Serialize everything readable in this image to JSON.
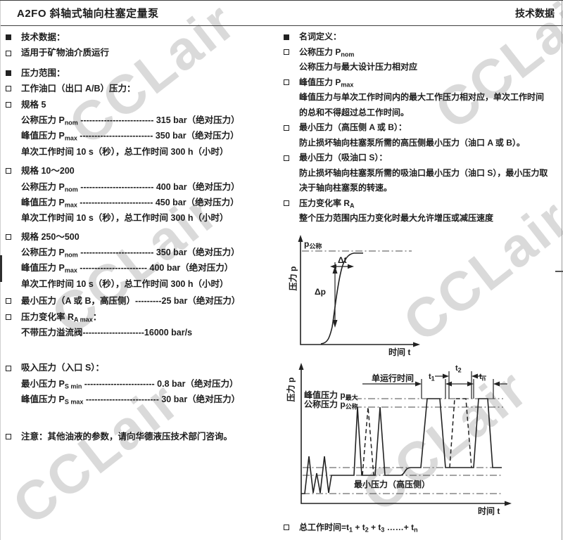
{
  "watermark": {
    "text": "CCLair"
  },
  "header": {
    "title": "A2FO 斜轴式轴向柱塞定量泵",
    "right": "技术数据"
  },
  "left": {
    "items": [
      {
        "b": "f",
        "segs": [
          {
            "t": "技术数据："
          }
        ]
      },
      {
        "b": "h",
        "segs": [
          {
            "t": "适用于矿物油介质运行"
          }
        ]
      },
      {
        "b": "f",
        "gap": "g6",
        "segs": [
          {
            "t": "压力范围："
          }
        ]
      },
      {
        "b": "h",
        "segs": [
          {
            "t": "工作油口（出口 A/B）压力："
          }
        ]
      },
      {
        "b": "h",
        "segs": [
          {
            "t": "规格 5"
          }
        ]
      },
      {
        "b": "n",
        "segs": [
          {
            "t": "公称压力 P"
          },
          {
            "t": "nom",
            "s": true
          },
          {
            "t": "  ------------------------- 315 bar（绝对压力）"
          }
        ]
      },
      {
        "b": "n",
        "segs": [
          {
            "t": "峰值压力 P"
          },
          {
            "t": "max",
            "s": true
          },
          {
            "t": "  ------------------------- 350 bar（绝对压力）"
          }
        ]
      },
      {
        "b": "n",
        "segs": [
          {
            "t": "单次工作时间 10 s（秒），总工作时间 300 h（小时）"
          }
        ]
      },
      {
        "b": "h",
        "gap": "g5",
        "segs": [
          {
            "t": "规格 10～200"
          }
        ]
      },
      {
        "b": "n",
        "segs": [
          {
            "t": "公称压力 P"
          },
          {
            "t": "nom",
            "s": true
          },
          {
            "t": "  ------------------------- 400 bar（绝对压力）"
          }
        ]
      },
      {
        "b": "n",
        "segs": [
          {
            "t": "峰值压力 P"
          },
          {
            "t": "max",
            "s": true
          },
          {
            "t": "  ------------------------- 450 bar（绝对压力）"
          }
        ]
      },
      {
        "b": "n",
        "segs": [
          {
            "t": "单次工作时间 10 s（秒），总工作时间 300 h（小时）"
          }
        ]
      },
      {
        "b": "h",
        "gap": "g4",
        "segs": [
          {
            "t": "规格 250～500"
          }
        ]
      },
      {
        "b": "n",
        "segs": [
          {
            "t": "公称压力 P"
          },
          {
            "t": "nom",
            "s": true
          },
          {
            "t": "  ------------------------- 350 bar（绝对压力）"
          }
        ]
      },
      {
        "b": "n",
        "segs": [
          {
            "t": "峰值压力 P"
          },
          {
            "t": "max",
            "s": true
          },
          {
            "t": "  ----------------------- 400 bar（绝对压力）"
          }
        ]
      },
      {
        "b": "n",
        "segs": [
          {
            "t": "单次工作时间 10 s（秒），总工作时间 300 h（小时）"
          }
        ]
      },
      {
        "b": "h",
        "gap": "g2",
        "segs": [
          {
            "t": "最小压力（A 或 B，高压侧）---------25 bar（绝对压力）"
          }
        ]
      },
      {
        "b": "h",
        "segs": [
          {
            "t": "压力变化率 R"
          },
          {
            "t": "A max",
            "s": true
          },
          {
            "t": "："
          }
        ]
      },
      {
        "b": "n",
        "segs": [
          {
            "t": "不带压力溢流阀---------------------16000 bar/s"
          }
        ]
      },
      {
        "b": "h",
        "gap": "g28",
        "segs": [
          {
            "t": "吸入压力（入口 S）："
          }
        ]
      },
      {
        "b": "n",
        "segs": [
          {
            "t": "最小压力 P"
          },
          {
            "t": "S min",
            "s": true
          },
          {
            "t": "  ------------------------ 0.8 bar（绝对压力）"
          }
        ]
      },
      {
        "b": "n",
        "segs": [
          {
            "t": "峰值压力 P"
          },
          {
            "t": "S max",
            "s": true
          },
          {
            "t": "  ------------------------- 30 bar（绝对压力）"
          }
        ]
      },
      {
        "b": "h",
        "gap": "g30",
        "segs": [
          {
            "t": "注意：其他油液的参数，请向华德液压技术部门咨询。"
          }
        ]
      }
    ]
  },
  "right": {
    "items": [
      {
        "b": "f",
        "segs": [
          {
            "t": "名词定义："
          }
        ]
      },
      {
        "b": "h",
        "segs": [
          {
            "t": "公称压力 P"
          },
          {
            "t": "nom",
            "s": true
          }
        ]
      },
      {
        "b": "n",
        "segs": [
          {
            "t": "公称压力与最大设计压力相对应"
          }
        ]
      },
      {
        "b": "h",
        "segs": [
          {
            "t": "峰值压力 P"
          },
          {
            "t": "max",
            "s": true
          }
        ]
      },
      {
        "b": "n",
        "segs": [
          {
            "t": "峰值压力与单次工作时间内的最大工作压力相对应，单次工作时间"
          }
        ]
      },
      {
        "b": "n",
        "segs": [
          {
            "t": "的总和不得超过总工作时间。"
          }
        ]
      },
      {
        "b": "h",
        "segs": [
          {
            "t": "最小压力（高压侧 A 或 B）："
          }
        ]
      },
      {
        "b": "n",
        "segs": [
          {
            "t": "防止损坏轴向柱塞泵所需的高压侧最小压力（油口 A 或 B）。"
          }
        ]
      },
      {
        "b": "h",
        "segs": [
          {
            "t": "最小压力（吸油口 S）："
          }
        ]
      },
      {
        "b": "n",
        "segs": [
          {
            "t": "防止损坏轴向柱塞泵所需的吸油口最小压力（油口 S），最小压力取"
          }
        ]
      },
      {
        "b": "n",
        "segs": [
          {
            "t": "决于轴向柱塞泵的转速。"
          }
        ]
      },
      {
        "b": "h",
        "segs": [
          {
            "t": "压力变化率 R"
          },
          {
            "t": "A",
            "s": true
          }
        ]
      },
      {
        "b": "n",
        "segs": [
          {
            "t": "整个压力范围内压力变化时最大允许增压或减压速度"
          }
        ]
      }
    ],
    "footer_item": {
      "b": "h",
      "segs": [
        {
          "t": "总工作时间=t"
        },
        {
          "t": "1",
          "s": true
        },
        {
          "t": " + t"
        },
        {
          "t": "2",
          "s": true
        },
        {
          "t": " + t"
        },
        {
          "t": "3",
          "s": true
        },
        {
          "t": " ……+ t"
        },
        {
          "t": "n",
          "s": true
        }
      ]
    }
  },
  "chart_data": [
    {
      "type": "line",
      "title": "",
      "ylabel": "压力 p",
      "xlabel": "时间 t",
      "ref_line": {
        "main": "p",
        "sub": "公称",
        "style": "dash-dot"
      },
      "labels": {
        "dp": "Δp",
        "dt": "Δt"
      },
      "curve_shape": "S形升压曲线，自零快速升压并在 p公称 水平趋于平稳",
      "grid": "off",
      "legend": "none"
    },
    {
      "type": "line",
      "title": "",
      "ylabel": "压力 p",
      "xlabel": "时间 t",
      "labels": {
        "single_run": "单运行时间",
        "t1": {
          "m": "t",
          "s": "1"
        },
        "t2": {
          "m": "t",
          "s": "2"
        },
        "tn": {
          "m": "t",
          "s": "n"
        },
        "peak": {
          "m": "峰值压力 p",
          "s": "最大"
        },
        "nominal": {
          "m": "公称压力 p",
          "s": "公称"
        },
        "min": "最小压力（高压侧）"
      },
      "reference_levels": [
        "峰值压力 p最大",
        "公称压力 p公称",
        "最小压力（高压侧）"
      ],
      "curve_shape": "压力-时间负载循环：低压小脉冲、升至公称压力的尖峰（含虚线备选）、以及持续 t1/t2/tn 的峰值压力梯形脉冲",
      "grid": "off",
      "legend": "none"
    }
  ]
}
